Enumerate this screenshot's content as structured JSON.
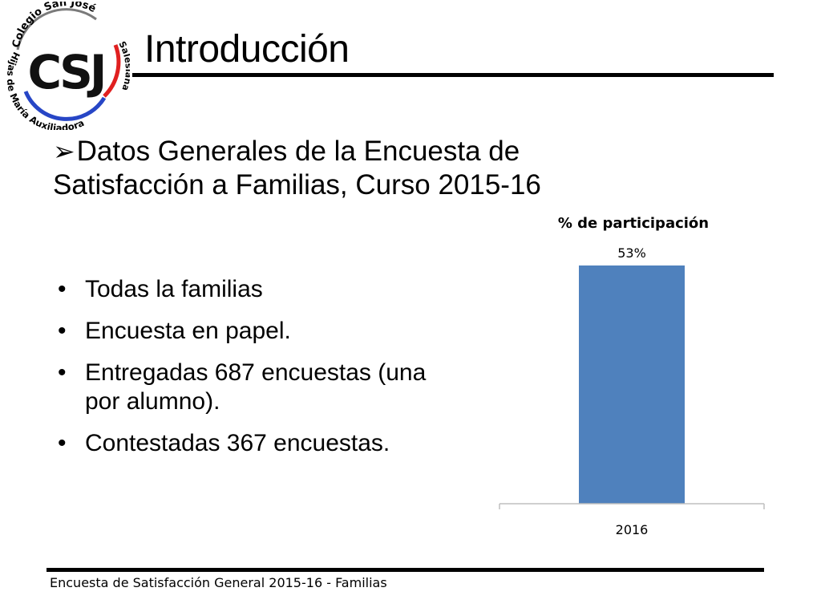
{
  "logo": {
    "monogram": "CSJ",
    "top_text": "Colegio San José",
    "left_text": "Hijas de María Auxiliadora",
    "right_text": "Salesianas",
    "colors": {
      "red": "#e02020",
      "blue": "#2746c6",
      "gray": "#7a7a7a"
    }
  },
  "slide": {
    "title": "Introducción",
    "heading_arrow": "➢",
    "heading": "Datos Generales de la Encuesta de Satisfacción a Familias, Curso 2015-16",
    "bullet_glyph": "•",
    "bullets": [
      "Todas la familias",
      "Encuesta en papel.",
      "Entregadas 687 encuestas (una por alumno).",
      "Contestadas 367 encuestas."
    ]
  },
  "chart_data": {
    "type": "bar",
    "title": "% de participación",
    "categories": [
      "2016"
    ],
    "values": [
      53
    ],
    "data_labels": [
      "53%"
    ],
    "ylim": [
      0,
      100
    ],
    "grid": false,
    "legend": "none",
    "bar_color": "#4f81bd",
    "xlabel": "",
    "ylabel": ""
  },
  "footer": {
    "text": "Encuesta  de Satisfacción General 2015-16 - Familias"
  }
}
